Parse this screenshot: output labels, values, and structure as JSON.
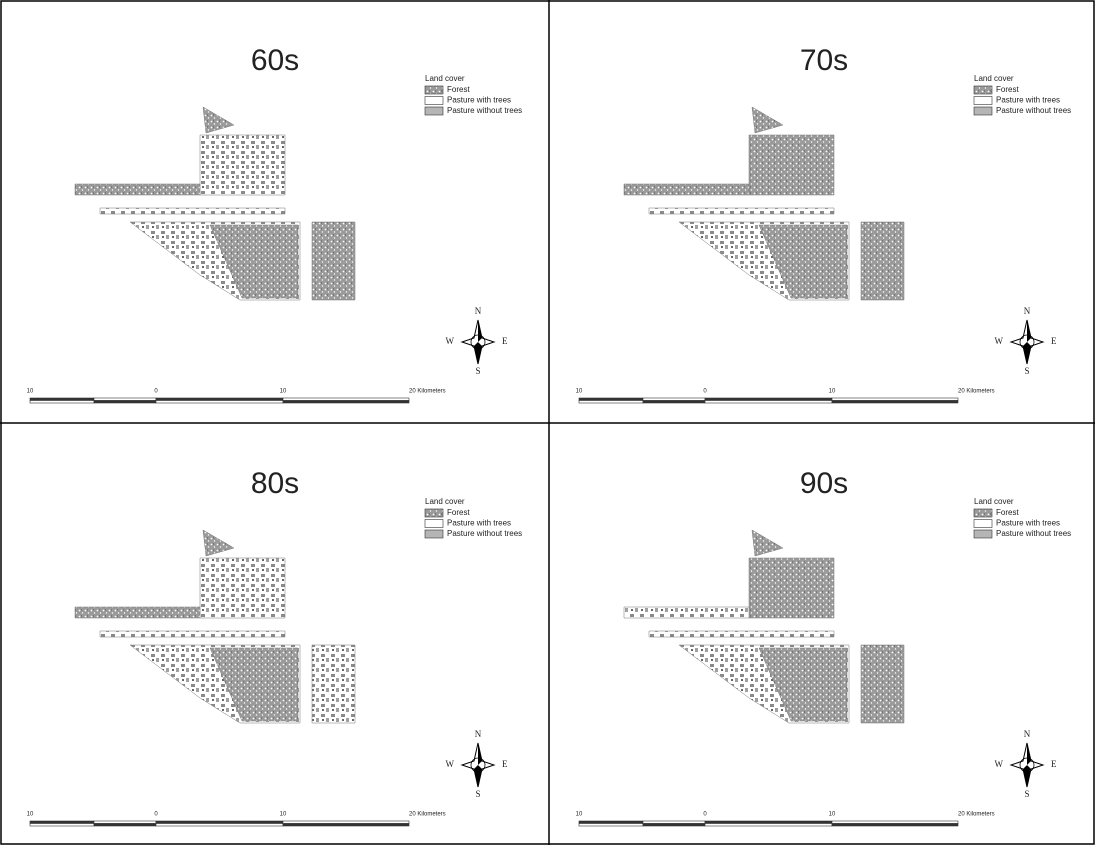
{
  "panels": [
    {
      "title": "60s",
      "legend": {
        "title": "Land cover",
        "items": [
          "Forest",
          "Pasture with trees",
          "Pasture without trees"
        ]
      },
      "scale_labels": [
        "10",
        "0",
        "10",
        "20 Kilometers"
      ],
      "compass": {
        "n": "N",
        "s": "S",
        "w": "W",
        "e": "E"
      }
    },
    {
      "title": "70s",
      "legend": {
        "title": "Land cover",
        "items": [
          "Forest",
          "Pasture with trees",
          "Pasture without trees"
        ]
      },
      "scale_labels": [
        "10",
        "0",
        "10",
        "20 Kilometers"
      ],
      "compass": {
        "n": "N",
        "s": "S",
        "w": "W",
        "e": "E"
      }
    },
    {
      "title": "80s",
      "legend": {
        "title": "Land cover",
        "items": [
          "Forest",
          "Pasture with trees",
          "Pasture without trees"
        ]
      },
      "scale_labels": [
        "10",
        "0",
        "10",
        "20 Kilometers"
      ],
      "compass": {
        "n": "N",
        "s": "S",
        "w": "W",
        "e": "E"
      }
    },
    {
      "title": "90s",
      "legend": {
        "title": "Land cover",
        "items": [
          "Forest",
          "Pasture with trees",
          "Pasture without trees"
        ]
      },
      "scale_labels": [
        "10",
        "0",
        "10",
        "20 Kilometers"
      ],
      "compass": {
        "n": "N",
        "s": "S",
        "w": "W",
        "e": "E"
      }
    }
  ]
}
